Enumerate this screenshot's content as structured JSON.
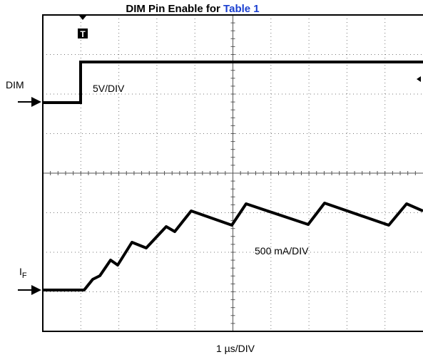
{
  "title": {
    "text": "DIM Pin Enable for ",
    "link": "Table 1"
  },
  "labels": {
    "dim": "DIM",
    "dim_scale": "5V/DIV",
    "current_scale": "500 mA/DIV",
    "if_main": "I",
    "if_sub": "F",
    "time_scale": "1 µs/DIV"
  },
  "trigger_marker": "T"
}
